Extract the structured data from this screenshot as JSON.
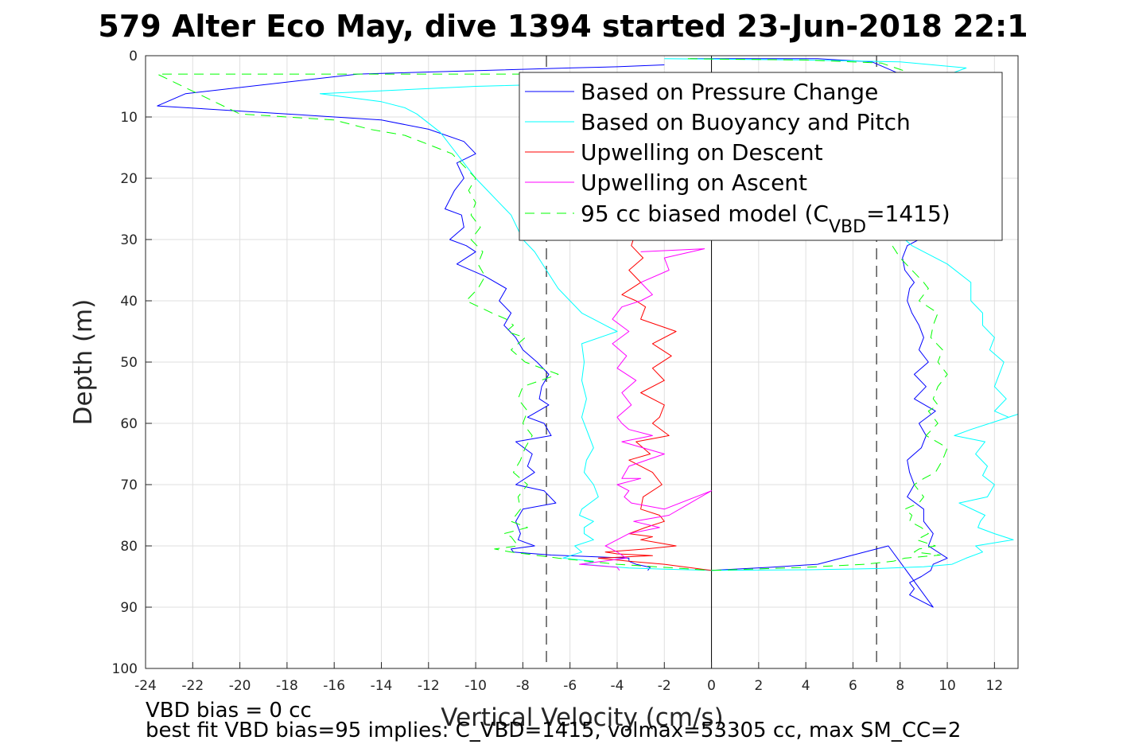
{
  "chart_data": {
    "type": "line",
    "title": "579 Alter Eco May, dive 1394 started 23-Jun-2018 22:1",
    "xlabel": "Vertical Velocity (cm/s)",
    "ylabel": "Depth (m)",
    "xlim": [
      -24,
      13
    ],
    "ylim": [
      0,
      100
    ],
    "y_reversed": true,
    "grid": true,
    "legend_position": "top-right",
    "x_ticks": [
      "-24",
      "-22",
      "-20",
      "-18",
      "-16",
      "-14",
      "-12",
      "-10",
      "-8",
      "-6",
      "-4",
      "-2",
      "0",
      "2",
      "4",
      "6",
      "8",
      "10",
      "12"
    ],
    "y_ticks": [
      "0",
      "10",
      "20",
      "30",
      "40",
      "50",
      "60",
      "70",
      "80",
      "90",
      "100"
    ],
    "reference_lines": {
      "solid_x": 0,
      "dashed_x": [
        -7,
        7
      ]
    },
    "legend": {
      "l1": "Based on Pressure Change",
      "l2": "Based on Buoyancy and Pitch",
      "l3": "Upwelling on Descent",
      "l4": "Upwelling on Ascent",
      "l5_pre": "95 cc biased model (C",
      "l5_sub": "VBD",
      "l5_post": "=1415)"
    },
    "series": [
      {
        "name": "Based on Pressure Change",
        "color": "#0000ff",
        "style": "solid",
        "x": [
          -2,
          -4,
          -6,
          -15,
          -22.3,
          -23.5,
          -18,
          -14,
          -12,
          -10.5,
          -10,
          -10.8,
          -10.5,
          -10.9,
          -11.3,
          -10.6,
          -10.5,
          -11.1,
          -10.4,
          -10,
          -10.8,
          -9.6,
          -8.7,
          -9,
          -8.5,
          -8.8,
          -8.3,
          -8,
          -7.4,
          -6.9,
          -7.2,
          -7.3,
          -6.9,
          -7.8,
          -7.1,
          -6.8,
          -8.3,
          -7.6,
          -7.8,
          -7.5,
          -8.3,
          -7.1,
          -6.6,
          -8,
          -8.3,
          -8.1,
          -8.2,
          -7.5,
          -8.5,
          -8.4,
          -6.8,
          -3.5,
          -3.5,
          -3.2,
          -2.6,
          -2.7
        ],
        "y": [
          1.5,
          1.8,
          2,
          3,
          6.2,
          8.2,
          9.5,
          10.5,
          12,
          14,
          16,
          17.5,
          20,
          22,
          25,
          26,
          28,
          30,
          31,
          32,
          34,
          36,
          38,
          40,
          42,
          44,
          46,
          48,
          50,
          52,
          54,
          56,
          57,
          59,
          60,
          62,
          63,
          65,
          67,
          68,
          70,
          71,
          73,
          74,
          76,
          78,
          79,
          80,
          80.5,
          81,
          81.5,
          82,
          82.5,
          83,
          83.5,
          84
        ]
      },
      {
        "name": "Based on Pressure Change",
        "color": "#0000ff",
        "style": "solid",
        "x": [
          -0.9,
          4.5,
          6.8,
          8,
          7.9,
          8.3,
          8.5,
          8.1,
          8.6,
          8.3,
          8.6,
          9.1,
          9.2,
          8.1,
          8.4,
          8.8,
          8.3,
          8.1,
          8.2,
          8.6,
          8.4,
          8.3,
          8.5,
          8.8,
          9,
          8.8,
          9.2,
          8.6,
          9.1,
          8.6,
          9.5,
          8.8,
          9.1,
          8.9,
          8.3,
          8.4,
          8.6,
          8.3,
          9,
          9,
          9.4,
          9.2,
          10,
          9.4,
          9.3,
          8.9,
          8.4,
          8.6,
          8.4,
          8.9,
          9.4,
          7.5,
          6,
          4.5,
          2.5,
          0
        ],
        "y": [
          0.5,
          0.5,
          1,
          3,
          5,
          7,
          9,
          11,
          13,
          15,
          17,
          20,
          23,
          25,
          28,
          30,
          31,
          33,
          35,
          37,
          38,
          40,
          42,
          44,
          46,
          48,
          50,
          52,
          54,
          56,
          58,
          60,
          62,
          64,
          66,
          68,
          70,
          72,
          74,
          76,
          78,
          80,
          82,
          83,
          84,
          85,
          86,
          87,
          88,
          89,
          90,
          80,
          81.5,
          83,
          83.5,
          84
        ]
      },
      {
        "name": "Based on Buoyancy and Pitch",
        "color": "#00ffff",
        "style": "solid",
        "x": [
          -2,
          -5,
          -10,
          -16.6,
          -14,
          -13,
          -12.5,
          -12,
          -11.5,
          -11,
          -10.5,
          -10,
          -9.5,
          -9,
          -8.5,
          -8,
          -7.5,
          -7,
          -6.5,
          -6,
          -5.5,
          -5,
          -4.5,
          -4,
          -5.5,
          -5.4,
          -5.5,
          -5.3,
          -5.5,
          -5.2,
          -5,
          -5.3,
          -5.4,
          -5,
          -4.8,
          -5.5,
          -5.6,
          -5,
          -5.4,
          -5.4,
          -5,
          -5.8,
          -5.5,
          -6.3,
          -5,
          -5.4,
          -4.5,
          -3.5,
          -2,
          0
        ],
        "y": [
          4,
          4.5,
          5,
          6.2,
          7.5,
          8.5,
          9.5,
          11,
          12.5,
          15,
          17.5,
          20,
          22,
          24,
          26,
          30,
          32,
          35,
          38,
          40,
          42,
          43,
          44,
          45,
          47,
          50,
          53,
          56,
          59,
          62,
          64,
          66,
          68,
          70,
          72,
          74,
          75,
          76,
          77,
          78,
          79,
          80,
          81,
          82,
          82.5,
          83,
          83.3,
          83.6,
          83.8,
          84
        ]
      },
      {
        "name": "Based on Buoyancy and Pitch",
        "color": "#00ffff",
        "style": "solid",
        "x": [
          -2,
          4,
          8,
          10.8,
          9.4,
          8.5,
          8.3,
          8.1,
          7.5,
          7,
          8.5,
          10,
          11,
          11,
          11.5,
          11.5,
          12,
          11.8,
          12.4,
          12.2,
          12,
          12.5,
          12,
          12.6,
          13,
          11,
          10.3,
          11.6,
          11.2,
          11.7,
          11.5,
          12,
          11.7,
          10.5,
          11.6,
          11.4,
          11.3,
          12,
          12.8,
          11.2,
          11.5,
          10.8,
          10.2,
          9,
          7,
          4,
          0
        ],
        "y": [
          0.5,
          0.7,
          1,
          2,
          4,
          6,
          10,
          15,
          20,
          26,
          31,
          34,
          37,
          40,
          42,
          44,
          46,
          48,
          50,
          52,
          54,
          56,
          58,
          59,
          58.5,
          61,
          62,
          63,
          65,
          67,
          68.5,
          70,
          72,
          73,
          75,
          76,
          77,
          78,
          79,
          80,
          81,
          82,
          83,
          83.4,
          83.7,
          83.9,
          84
        ]
      },
      {
        "name": "Upwelling on Descent",
        "color": "#ff0000",
        "style": "solid",
        "x": [
          -3,
          -5,
          -8,
          -6,
          -4,
          -3,
          -2.5,
          -3.2,
          -2.8,
          -3,
          -2.5,
          -3.4,
          -2.9,
          -3.5,
          -3,
          -3.8,
          -3.2,
          -2.8,
          -3,
          -1.5,
          -2.5,
          -1.7,
          -2.5,
          -2,
          -3,
          -2,
          -2.2,
          -2.5,
          -1.8,
          -3.2,
          -2.6,
          -3.5,
          -2.5,
          -2.1,
          -2.9,
          -3,
          -2.2,
          -2,
          -2.8,
          -3.5,
          -2.5,
          -3,
          -1.5,
          -2.8,
          -4.5,
          -4,
          -2.5,
          -4.8,
          -3.5,
          -2,
          0
        ],
        "y": [
          7,
          7.5,
          8.2,
          9,
          10,
          11,
          12,
          14,
          16,
          18,
          20,
          31,
          33,
          35,
          37,
          39,
          40,
          41,
          43,
          45,
          47,
          49,
          51,
          53,
          55,
          57,
          59,
          60,
          62,
          63,
          65,
          66,
          68,
          70,
          72,
          74,
          75,
          76,
          77,
          78,
          78.5,
          79,
          80,
          80.5,
          81,
          81.3,
          81.6,
          82,
          82.5,
          83,
          84
        ]
      },
      {
        "name": "Upwelling on Ascent",
        "color": "#ff00ff",
        "style": "solid",
        "x": [
          -3,
          -0.3,
          -2,
          -1.8,
          -3,
          -2.5,
          -3,
          -3.8,
          -4.2,
          -3.5,
          -4.2,
          -3.6,
          -4,
          -3.2,
          -3.8,
          -3.4,
          -4,
          -3.8,
          -3.5,
          -2.5,
          -3.8,
          -2,
          -3.5,
          -3.8,
          -3,
          -4,
          -3.5,
          -3.7,
          -3.4,
          -2,
          0,
          -1.8,
          -3.3,
          -2.2,
          -3.5,
          -4.5,
          -4,
          -3.6,
          -5.6,
          -4,
          -3.9
        ],
        "y": [
          32,
          31.5,
          33,
          35,
          37,
          39,
          40,
          41,
          43,
          45,
          47,
          49,
          51,
          53,
          55,
          57,
          59,
          60,
          61,
          62,
          63,
          65,
          67,
          69,
          69,
          70,
          71,
          72,
          73,
          74,
          71,
          75,
          76,
          77,
          78,
          80,
          81,
          82,
          83,
          83.5,
          84
        ]
      },
      {
        "name": "95 cc biased model (C_VBD=1415)",
        "color": "#00ff00",
        "style": "dashed",
        "x": [
          -1.3,
          -4,
          -8,
          -12,
          -15,
          -23.5,
          -20,
          -16,
          -14.5,
          -13,
          -12,
          -11,
          -10.5,
          -10,
          -10.3,
          -10,
          -10.2,
          -9.8,
          -10.2,
          -9.7,
          -9.9,
          -9.6,
          -9.9,
          -10.4,
          -9.3,
          -8.7,
          -8.4,
          -8.7,
          -7.9,
          -8.5,
          -7.9,
          -6.5,
          -8,
          -8.2,
          -7.8,
          -8,
          -7.6,
          -7.9,
          -8.1,
          -8.4,
          -7.8,
          -8.2,
          -8.1,
          -8.5,
          -7.8,
          -8.8,
          -8.5,
          -8.4,
          -8.2,
          -9.2,
          -8.5,
          -7.5,
          -6.5,
          -4,
          0
        ],
        "y": [
          3,
          3,
          3,
          3,
          3,
          3,
          9.5,
          10.5,
          12,
          13,
          14.5,
          16,
          18,
          20,
          22,
          24,
          26,
          28,
          30,
          32,
          34,
          36,
          38,
          40,
          42,
          43,
          44,
          45,
          46,
          48,
          50,
          52,
          54,
          56,
          58,
          60,
          62,
          64,
          66,
          68,
          70,
          72,
          74,
          76,
          77,
          78,
          78.5,
          79,
          80,
          80.5,
          81,
          81.5,
          82,
          83,
          84
        ]
      },
      {
        "name": "95 cc biased model (C_VBD=1415)",
        "color": "#00ff00",
        "style": "dashed",
        "x": [
          -1,
          4,
          7.2,
          8.2,
          8,
          7.5,
          7.3,
          7.5,
          8,
          8.5,
          9,
          9.2,
          8.8,
          9.6,
          9.4,
          9.3,
          9.8,
          9.6,
          10,
          9.6,
          9.4,
          9.6,
          9.2,
          9.4,
          9.6,
          9.1,
          10,
          9.8,
          9.5,
          9,
          8.6,
          9,
          8.8,
          8.2,
          8.5,
          8.4,
          8.9,
          9.2,
          8.7,
          9.5,
          8.8,
          8.6,
          9.7,
          8.2,
          7.7,
          6.5,
          4,
          0
        ],
        "y": [
          0.5,
          0.7,
          1.2,
          2.5,
          5,
          10,
          20,
          30,
          33,
          35,
          37,
          38,
          40,
          42,
          44,
          46,
          48,
          50,
          52,
          54,
          56,
          57,
          58,
          59,
          60,
          62,
          64,
          66,
          68,
          69,
          70,
          72,
          73,
          74,
          75,
          76,
          77,
          78,
          79,
          80,
          80.5,
          81,
          81.5,
          82,
          82.5,
          83,
          83.5,
          84
        ]
      }
    ]
  },
  "notes": {
    "bias": "VBD bias = 0 cc",
    "best_fit": "best fit VBD bias=95 implies: C_VBD=1415, volmax=53305 cc, max SM_CC=2"
  }
}
